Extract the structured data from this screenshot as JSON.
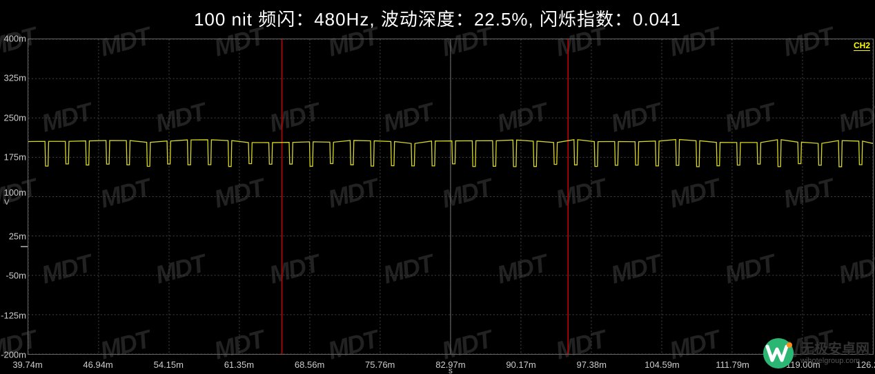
{
  "title": "100 nit 频闪：480Hz, 波动深度：22.5%, 闪烁指数：0.041",
  "channel_label": "CH2",
  "chart": {
    "type": "line-oscilloscope",
    "background_color": "#000000",
    "grid_color": "#444444",
    "border_color": "#666666",
    "trace_color": "#d9d926",
    "cursor_color": "#cc0000",
    "text_color": "#cccccc",
    "title_color": "#ffffff",
    "title_fontsize": 26,
    "tick_fontsize": 13,
    "y_axis": {
      "min": -200,
      "max": 400,
      "ticks": [
        {
          "label": "400m",
          "v": 400,
          "unit": ""
        },
        {
          "label": "325m",
          "v": 325,
          "unit": ""
        },
        {
          "label": "250m",
          "v": 250,
          "unit": ""
        },
        {
          "label": "175m",
          "v": 175,
          "unit": ""
        },
        {
          "label": "100m",
          "v": 100,
          "unit": "V"
        },
        {
          "label": "25m",
          "v": 25,
          "unit": ""
        },
        {
          "label": "-50m",
          "v": -50,
          "unit": ""
        },
        {
          "label": "-125m",
          "v": -125,
          "unit": ""
        },
        {
          "label": "-200m",
          "v": -200,
          "unit": ""
        }
      ],
      "zero_dash_at": 25
    },
    "x_axis": {
      "min": 39.74,
      "max": 126.21,
      "unit_label": "s",
      "ticks": [
        {
          "label": "39.74m",
          "v": 39.74
        },
        {
          "label": "46.94m",
          "v": 46.94
        },
        {
          "label": "54.15m",
          "v": 54.15
        },
        {
          "label": "61.35m",
          "v": 61.35
        },
        {
          "label": "68.56m",
          "v": 68.56
        },
        {
          "label": "75.76m",
          "v": 75.76
        },
        {
          "label": "82.97m",
          "v": 82.97
        },
        {
          "label": "90.17m",
          "v": 90.17
        },
        {
          "label": "97.38m",
          "v": 97.38
        },
        {
          "label": "104.59m",
          "v": 104.59
        },
        {
          "label": "111.79m",
          "v": 111.79
        },
        {
          "label": "119.00m",
          "v": 119.0
        },
        {
          "label": "126.21m",
          "v": 126.21
        }
      ]
    },
    "cursors_x": [
      65.7,
      95.0
    ],
    "center_line_x": 82.97,
    "signal": {
      "period_ms": 2.083,
      "high_mv": 205,
      "low_mv": 160,
      "duty_low": 0.18
    }
  },
  "watermark_text": "MDT",
  "site": {
    "name_cn": "无极安卓网",
    "name_en": "wjhotelgroup.com"
  }
}
